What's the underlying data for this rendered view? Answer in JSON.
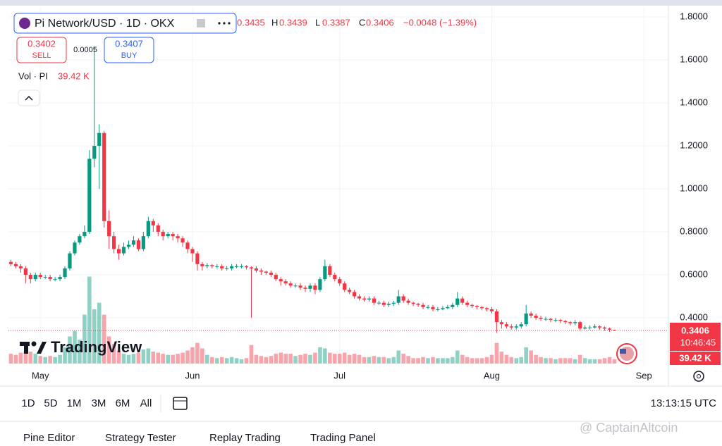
{
  "header": {
    "title": "Pi Network/USD · 1D · OKX",
    "ohlc": {
      "open": 0.3435,
      "high_label": "H",
      "high": 0.3439,
      "low_label": "L",
      "low": 0.3387,
      "close_label": "C",
      "close": 0.3406,
      "change": "−0.0048 (−1.39%)"
    },
    "sell": {
      "price": 0.3402,
      "label": "SELL"
    },
    "spread": 0.0005,
    "buy": {
      "price": 0.3407,
      "label": "BUY"
    },
    "volume_title": "Vol · PI",
    "volume_label": "39.42 K",
    "watermark": "TradingView",
    "timer": "10:46:45"
  },
  "chart_data": {
    "type": "candlestick",
    "up_color": "#089981",
    "down_color": "#f23645",
    "xlim": [
      -0.5,
      134
    ],
    "xticks": [
      {
        "value": 6,
        "label": "May"
      },
      {
        "value": 37,
        "label": "Jun"
      },
      {
        "value": 67,
        "label": "Jul"
      },
      {
        "value": 98,
        "label": "Aug"
      },
      {
        "value": 129,
        "label": "Sep"
      }
    ],
    "ylim": [
      0.174,
      1.846
    ],
    "yticks": [
      {
        "value": 0.4,
        "label": "0.4000"
      },
      {
        "value": 0.6,
        "label": "0.6000"
      },
      {
        "value": 0.8,
        "label": "0.8000"
      },
      {
        "value": 1.0,
        "label": "1.0000"
      },
      {
        "value": 1.2,
        "label": "1.2000"
      },
      {
        "value": 1.4,
        "label": "1.4000"
      },
      {
        "value": 1.6,
        "label": "1.6000"
      },
      {
        "value": 1.8,
        "label": "1.8000"
      }
    ],
    "volume_ylim": [
      0,
      830
    ],
    "grid": true,
    "candles": [
      {
        "o": 0.66,
        "h": 0.67,
        "l": 0.64,
        "c": 0.65,
        "v": 90
      },
      {
        "o": 0.65,
        "h": 0.66,
        "l": 0.63,
        "c": 0.64,
        "v": 80
      },
      {
        "o": 0.64,
        "h": 0.65,
        "l": 0.61,
        "c": 0.63,
        "v": 100
      },
      {
        "o": 0.63,
        "h": 0.64,
        "l": 0.56,
        "c": 0.6,
        "v": 120
      },
      {
        "o": 0.6,
        "h": 0.61,
        "l": 0.56,
        "c": 0.58,
        "v": 110
      },
      {
        "o": 0.58,
        "h": 0.61,
        "l": 0.57,
        "c": 0.6,
        "v": 90
      },
      {
        "o": 0.6,
        "h": 0.61,
        "l": 0.58,
        "c": 0.59,
        "v": 70
      },
      {
        "o": 0.59,
        "h": 0.6,
        "l": 0.58,
        "c": 0.59,
        "v": 60
      },
      {
        "o": 0.59,
        "h": 0.6,
        "l": 0.57,
        "c": 0.58,
        "v": 70
      },
      {
        "o": 0.58,
        "h": 0.59,
        "l": 0.57,
        "c": 0.58,
        "v": 60
      },
      {
        "o": 0.58,
        "h": 0.6,
        "l": 0.57,
        "c": 0.59,
        "v": 80
      },
      {
        "o": 0.59,
        "h": 0.64,
        "l": 0.58,
        "c": 0.63,
        "v": 150
      },
      {
        "o": 0.63,
        "h": 0.71,
        "l": 0.62,
        "c": 0.7,
        "v": 250
      },
      {
        "o": 0.7,
        "h": 0.76,
        "l": 0.69,
        "c": 0.75,
        "v": 300
      },
      {
        "o": 0.75,
        "h": 0.79,
        "l": 0.74,
        "c": 0.78,
        "v": 220
      },
      {
        "o": 0.78,
        "h": 0.83,
        "l": 0.77,
        "c": 0.8,
        "v": 450
      },
      {
        "o": 0.8,
        "h": 1.18,
        "l": 0.79,
        "c": 1.14,
        "v": 800
      },
      {
        "o": 1.14,
        "h": 1.66,
        "l": 1.1,
        "c": 1.2,
        "v": 500
      },
      {
        "o": 1.2,
        "h": 1.3,
        "l": 1.0,
        "c": 1.26,
        "v": 560
      },
      {
        "o": 1.26,
        "h": 1.27,
        "l": 0.82,
        "c": 0.85,
        "v": 450
      },
      {
        "o": 0.85,
        "h": 0.9,
        "l": 0.72,
        "c": 0.78,
        "v": 250
      },
      {
        "o": 0.78,
        "h": 0.8,
        "l": 0.7,
        "c": 0.72,
        "v": 180
      },
      {
        "o": 0.72,
        "h": 0.74,
        "l": 0.67,
        "c": 0.7,
        "v": 120
      },
      {
        "o": 0.7,
        "h": 0.75,
        "l": 0.69,
        "c": 0.73,
        "v": 90
      },
      {
        "o": 0.73,
        "h": 0.76,
        "l": 0.72,
        "c": 0.74,
        "v": 80
      },
      {
        "o": 0.74,
        "h": 0.78,
        "l": 0.73,
        "c": 0.76,
        "v": 90
      },
      {
        "o": 0.76,
        "h": 0.77,
        "l": 0.71,
        "c": 0.72,
        "v": 100
      },
      {
        "o": 0.72,
        "h": 0.8,
        "l": 0.71,
        "c": 0.78,
        "v": 130
      },
      {
        "o": 0.78,
        "h": 0.87,
        "l": 0.77,
        "c": 0.85,
        "v": 140
      },
      {
        "o": 0.85,
        "h": 0.86,
        "l": 0.8,
        "c": 0.83,
        "v": 110
      },
      {
        "o": 0.83,
        "h": 0.84,
        "l": 0.78,
        "c": 0.8,
        "v": 100
      },
      {
        "o": 0.8,
        "h": 0.81,
        "l": 0.76,
        "c": 0.78,
        "v": 90
      },
      {
        "o": 0.78,
        "h": 0.8,
        "l": 0.77,
        "c": 0.79,
        "v": 80
      },
      {
        "o": 0.79,
        "h": 0.8,
        "l": 0.76,
        "c": 0.78,
        "v": 80
      },
      {
        "o": 0.78,
        "h": 0.79,
        "l": 0.75,
        "c": 0.77,
        "v": 90
      },
      {
        "o": 0.77,
        "h": 0.78,
        "l": 0.73,
        "c": 0.75,
        "v": 100
      },
      {
        "o": 0.75,
        "h": 0.76,
        "l": 0.7,
        "c": 0.72,
        "v": 120
      },
      {
        "o": 0.72,
        "h": 0.73,
        "l": 0.66,
        "c": 0.7,
        "v": 150
      },
      {
        "o": 0.7,
        "h": 0.71,
        "l": 0.62,
        "c": 0.65,
        "v": 190
      },
      {
        "o": 0.65,
        "h": 0.66,
        "l": 0.62,
        "c": 0.64,
        "v": 140
      },
      {
        "o": 0.64,
        "h": 0.655,
        "l": 0.63,
        "c": 0.645,
        "v": 80
      },
      {
        "o": 0.645,
        "h": 0.65,
        "l": 0.63,
        "c": 0.64,
        "v": 60
      },
      {
        "o": 0.64,
        "h": 0.65,
        "l": 0.63,
        "c": 0.64,
        "v": 50
      },
      {
        "o": 0.64,
        "h": 0.65,
        "l": 0.62,
        "c": 0.63,
        "v": 60
      },
      {
        "o": 0.63,
        "h": 0.64,
        "l": 0.62,
        "c": 0.63,
        "v": 50
      },
      {
        "o": 0.63,
        "h": 0.65,
        "l": 0.62,
        "c": 0.64,
        "v": 60
      },
      {
        "o": 0.64,
        "h": 0.65,
        "l": 0.63,
        "c": 0.64,
        "v": 50
      },
      {
        "o": 0.64,
        "h": 0.65,
        "l": 0.63,
        "c": 0.64,
        "v": 40
      },
      {
        "o": 0.64,
        "h": 0.645,
        "l": 0.625,
        "c": 0.635,
        "v": 50
      },
      {
        "o": 0.635,
        "h": 0.64,
        "l": 0.4,
        "c": 0.63,
        "v": 170
      },
      {
        "o": 0.63,
        "h": 0.64,
        "l": 0.61,
        "c": 0.62,
        "v": 80
      },
      {
        "o": 0.62,
        "h": 0.63,
        "l": 0.6,
        "c": 0.615,
        "v": 70
      },
      {
        "o": 0.615,
        "h": 0.62,
        "l": 0.6,
        "c": 0.61,
        "v": 60
      },
      {
        "o": 0.61,
        "h": 0.62,
        "l": 0.59,
        "c": 0.6,
        "v": 70
      },
      {
        "o": 0.6,
        "h": 0.61,
        "l": 0.57,
        "c": 0.58,
        "v": 90
      },
      {
        "o": 0.58,
        "h": 0.59,
        "l": 0.55,
        "c": 0.57,
        "v": 100
      },
      {
        "o": 0.57,
        "h": 0.58,
        "l": 0.55,
        "c": 0.56,
        "v": 90
      },
      {
        "o": 0.56,
        "h": 0.57,
        "l": 0.54,
        "c": 0.55,
        "v": 90
      },
      {
        "o": 0.55,
        "h": 0.56,
        "l": 0.54,
        "c": 0.55,
        "v": 70
      },
      {
        "o": 0.55,
        "h": 0.56,
        "l": 0.53,
        "c": 0.54,
        "v": 80
      },
      {
        "o": 0.54,
        "h": 0.55,
        "l": 0.52,
        "c": 0.535,
        "v": 90
      },
      {
        "o": 0.535,
        "h": 0.56,
        "l": 0.52,
        "c": 0.55,
        "v": 80
      },
      {
        "o": 0.55,
        "h": 0.56,
        "l": 0.51,
        "c": 0.53,
        "v": 100
      },
      {
        "o": 0.53,
        "h": 0.59,
        "l": 0.52,
        "c": 0.58,
        "v": 150
      },
      {
        "o": 0.58,
        "h": 0.67,
        "l": 0.57,
        "c": 0.64,
        "v": 140
      },
      {
        "o": 0.64,
        "h": 0.65,
        "l": 0.59,
        "c": 0.6,
        "v": 100
      },
      {
        "o": 0.6,
        "h": 0.61,
        "l": 0.57,
        "c": 0.58,
        "v": 90
      },
      {
        "o": 0.58,
        "h": 0.59,
        "l": 0.55,
        "c": 0.56,
        "v": 90
      },
      {
        "o": 0.56,
        "h": 0.57,
        "l": 0.52,
        "c": 0.53,
        "v": 100
      },
      {
        "o": 0.53,
        "h": 0.54,
        "l": 0.51,
        "c": 0.52,
        "v": 80
      },
      {
        "o": 0.52,
        "h": 0.53,
        "l": 0.49,
        "c": 0.5,
        "v": 90
      },
      {
        "o": 0.5,
        "h": 0.51,
        "l": 0.48,
        "c": 0.49,
        "v": 80
      },
      {
        "o": 0.49,
        "h": 0.5,
        "l": 0.475,
        "c": 0.485,
        "v": 60
      },
      {
        "o": 0.485,
        "h": 0.5,
        "l": 0.475,
        "c": 0.49,
        "v": 60
      },
      {
        "o": 0.49,
        "h": 0.5,
        "l": 0.46,
        "c": 0.47,
        "v": 70
      },
      {
        "o": 0.47,
        "h": 0.48,
        "l": 0.46,
        "c": 0.47,
        "v": 60
      },
      {
        "o": 0.47,
        "h": 0.48,
        "l": 0.45,
        "c": 0.46,
        "v": 60
      },
      {
        "o": 0.46,
        "h": 0.475,
        "l": 0.45,
        "c": 0.465,
        "v": 50
      },
      {
        "o": 0.465,
        "h": 0.48,
        "l": 0.455,
        "c": 0.47,
        "v": 60
      },
      {
        "o": 0.47,
        "h": 0.53,
        "l": 0.46,
        "c": 0.5,
        "v": 120
      },
      {
        "o": 0.5,
        "h": 0.51,
        "l": 0.47,
        "c": 0.48,
        "v": 90
      },
      {
        "o": 0.48,
        "h": 0.49,
        "l": 0.46,
        "c": 0.47,
        "v": 70
      },
      {
        "o": 0.47,
        "h": 0.475,
        "l": 0.455,
        "c": 0.465,
        "v": 50
      },
      {
        "o": 0.465,
        "h": 0.47,
        "l": 0.45,
        "c": 0.46,
        "v": 50
      },
      {
        "o": 0.46,
        "h": 0.47,
        "l": 0.44,
        "c": 0.45,
        "v": 60
      },
      {
        "o": 0.45,
        "h": 0.46,
        "l": 0.44,
        "c": 0.45,
        "v": 50
      },
      {
        "o": 0.45,
        "h": 0.46,
        "l": 0.43,
        "c": 0.44,
        "v": 60
      },
      {
        "o": 0.44,
        "h": 0.45,
        "l": 0.43,
        "c": 0.44,
        "v": 50
      },
      {
        "o": 0.44,
        "h": 0.455,
        "l": 0.435,
        "c": 0.445,
        "v": 50
      },
      {
        "o": 0.445,
        "h": 0.46,
        "l": 0.44,
        "c": 0.45,
        "v": 50
      },
      {
        "o": 0.45,
        "h": 0.47,
        "l": 0.44,
        "c": 0.46,
        "v": 60
      },
      {
        "o": 0.46,
        "h": 0.52,
        "l": 0.45,
        "c": 0.49,
        "v": 120
      },
      {
        "o": 0.49,
        "h": 0.5,
        "l": 0.46,
        "c": 0.47,
        "v": 80
      },
      {
        "o": 0.47,
        "h": 0.48,
        "l": 0.45,
        "c": 0.46,
        "v": 60
      },
      {
        "o": 0.46,
        "h": 0.465,
        "l": 0.445,
        "c": 0.455,
        "v": 50
      },
      {
        "o": 0.455,
        "h": 0.46,
        "l": 0.44,
        "c": 0.45,
        "v": 50
      },
      {
        "o": 0.45,
        "h": 0.455,
        "l": 0.435,
        "c": 0.445,
        "v": 50
      },
      {
        "o": 0.445,
        "h": 0.45,
        "l": 0.43,
        "c": 0.44,
        "v": 60
      },
      {
        "o": 0.44,
        "h": 0.45,
        "l": 0.42,
        "c": 0.43,
        "v": 80
      },
      {
        "o": 0.43,
        "h": 0.44,
        "l": 0.33,
        "c": 0.38,
        "v": 190
      },
      {
        "o": 0.38,
        "h": 0.39,
        "l": 0.35,
        "c": 0.37,
        "v": 110
      },
      {
        "o": 0.37,
        "h": 0.38,
        "l": 0.35,
        "c": 0.36,
        "v": 80
      },
      {
        "o": 0.36,
        "h": 0.37,
        "l": 0.345,
        "c": 0.355,
        "v": 60
      },
      {
        "o": 0.355,
        "h": 0.37,
        "l": 0.345,
        "c": 0.36,
        "v": 50
      },
      {
        "o": 0.36,
        "h": 0.38,
        "l": 0.35,
        "c": 0.37,
        "v": 60
      },
      {
        "o": 0.37,
        "h": 0.46,
        "l": 0.36,
        "c": 0.42,
        "v": 150
      },
      {
        "o": 0.42,
        "h": 0.43,
        "l": 0.4,
        "c": 0.41,
        "v": 120
      },
      {
        "o": 0.41,
        "h": 0.42,
        "l": 0.39,
        "c": 0.4,
        "v": 80
      },
      {
        "o": 0.4,
        "h": 0.41,
        "l": 0.385,
        "c": 0.395,
        "v": 60
      },
      {
        "o": 0.395,
        "h": 0.405,
        "l": 0.385,
        "c": 0.395,
        "v": 50
      },
      {
        "o": 0.395,
        "h": 0.4,
        "l": 0.38,
        "c": 0.39,
        "v": 50
      },
      {
        "o": 0.39,
        "h": 0.4,
        "l": 0.38,
        "c": 0.39,
        "v": 40
      },
      {
        "o": 0.39,
        "h": 0.395,
        "l": 0.375,
        "c": 0.385,
        "v": 50
      },
      {
        "o": 0.385,
        "h": 0.39,
        "l": 0.37,
        "c": 0.38,
        "v": 50
      },
      {
        "o": 0.38,
        "h": 0.385,
        "l": 0.365,
        "c": 0.375,
        "v": 50
      },
      {
        "o": 0.375,
        "h": 0.39,
        "l": 0.365,
        "c": 0.38,
        "v": 40
      },
      {
        "o": 0.38,
        "h": 0.385,
        "l": 0.34,
        "c": 0.35,
        "v": 80
      },
      {
        "o": 0.35,
        "h": 0.365,
        "l": 0.345,
        "c": 0.355,
        "v": 50
      },
      {
        "o": 0.355,
        "h": 0.365,
        "l": 0.345,
        "c": 0.355,
        "v": 40
      },
      {
        "o": 0.355,
        "h": 0.37,
        "l": 0.35,
        "c": 0.36,
        "v": 40
      },
      {
        "o": 0.36,
        "h": 0.365,
        "l": 0.345,
        "c": 0.355,
        "v": 40
      },
      {
        "o": 0.355,
        "h": 0.36,
        "l": 0.34,
        "c": 0.35,
        "v": 50
      },
      {
        "o": 0.35,
        "h": 0.355,
        "l": 0.335,
        "c": 0.345,
        "v": 60
      },
      {
        "o": 0.3435,
        "h": 0.3439,
        "l": 0.3387,
        "c": 0.3406,
        "v": 39.42
      }
    ]
  },
  "toolbar": {
    "ranges": [
      "1D",
      "5D",
      "1M",
      "3M",
      "6M",
      "All"
    ],
    "clock": "13:13:15 UTC"
  },
  "tabs": [
    "Pine Editor",
    "Strategy Tester",
    "Replay Trading",
    "Trading Panel"
  ],
  "credit": "@ CaptainAltcoin"
}
